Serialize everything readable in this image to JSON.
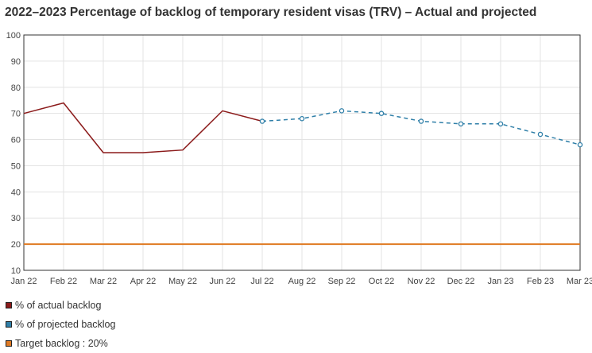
{
  "chart_data": {
    "type": "line",
    "title": "2022–2023 Percentage of backlog of temporary resident visas (TRV) – Actual and projected",
    "categories": [
      "Jan 22",
      "Feb 22",
      "Mar 22",
      "Apr 22",
      "May 22",
      "Jun 22",
      "Jul 22",
      "Aug 22",
      "Sep 22",
      "Oct 22",
      "Nov 22",
      "Dec 22",
      "Jan 23",
      "Feb 23",
      "Mar 23"
    ],
    "yticks": [
      10,
      20,
      30,
      40,
      50,
      60,
      70,
      80,
      90,
      100
    ],
    "ylim": [
      10,
      100
    ],
    "grid": true,
    "legend_position": "bottom-left",
    "series": [
      {
        "name": "% of actual backlog",
        "color": "#8b1a1a",
        "style": "solid",
        "markers": false,
        "values": [
          70,
          74,
          55,
          55,
          56,
          71,
          67,
          null,
          null,
          null,
          null,
          null,
          null,
          null,
          null
        ]
      },
      {
        "name": "% of projected backlog",
        "color": "#2f7fa8",
        "style": "dashed",
        "markers": true,
        "values": [
          null,
          null,
          null,
          null,
          null,
          null,
          67,
          68,
          71,
          70,
          67,
          66,
          66,
          62,
          58
        ]
      },
      {
        "name": "Target backlog : 20%",
        "color": "#e07b24",
        "style": "solid",
        "markers": false,
        "values": [
          20,
          20,
          20,
          20,
          20,
          20,
          20,
          20,
          20,
          20,
          20,
          20,
          20,
          20,
          20
        ]
      }
    ]
  }
}
